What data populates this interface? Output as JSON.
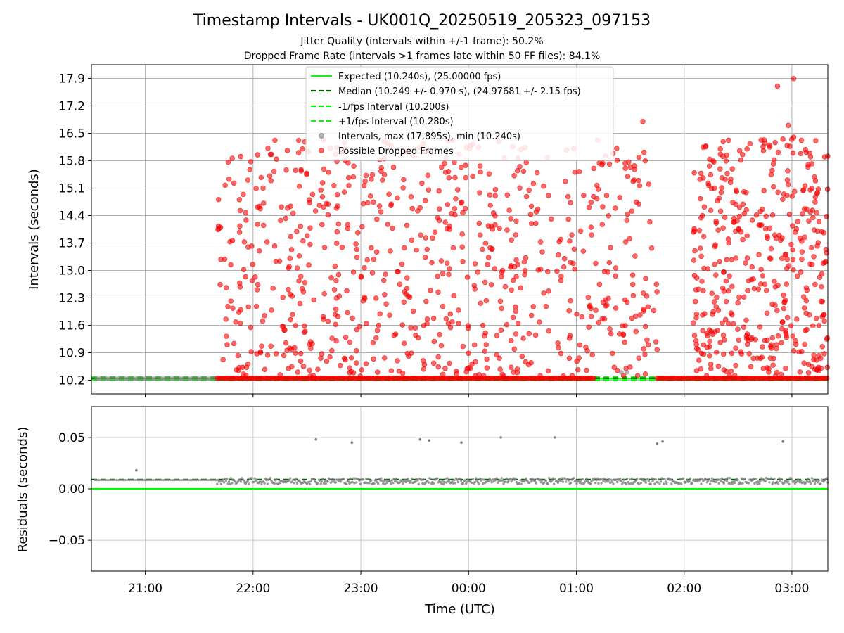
{
  "chart_data": [
    {
      "type": "scatter",
      "title": "Timestamp Intervals - UK001Q_20250519_205323_097153",
      "subtitle_1": "Jitter Quality (intervals within +/-1 frame): 50.2%",
      "subtitle_2": "Dropped Frame Rate (intervals >1 frames late within 50 FF files): 84.1%",
      "ylabel": "Intervals (seconds)",
      "xlabel": "Time (UTC)",
      "ylim": [
        9.85,
        18.25
      ],
      "xlim": [
        "20:30",
        "03:20"
      ],
      "yticks": [
        "10.2",
        "10.9",
        "11.6",
        "12.3",
        "13.0",
        "13.7",
        "14.4",
        "15.1",
        "15.8",
        "16.5",
        "17.2",
        "17.9"
      ],
      "xticks": [
        "21:00",
        "22:00",
        "23:00",
        "00:00",
        "01:00",
        "02:00",
        "03:00"
      ],
      "grid": true,
      "legend_position": "top-center",
      "legend": [
        "Expected (10.240s), (25.00000 fps)",
        "Median (10.249 +/- 0.970 s), (24.97681 +/- 2.15 fps)",
        "-1/fps Interval (10.200s)",
        "+1/fps Interval (10.280s)",
        "Intervals, max (17.895s), min (10.240s)",
        "Possible Dropped Frames"
      ],
      "lines": {
        "expected": 10.24,
        "median": 10.249,
        "minus_1fps": 10.2,
        "plus_1fps": 10.28
      },
      "baseline_segment_range": [
        "20:30",
        "21:40"
      ],
      "dropped_frames_active_ranges": [
        [
          "21:40",
          "01:45"
        ],
        [
          "02:05",
          "03:20"
        ]
      ],
      "dropped_frames_dense_ranges": [
        [
          "21:40",
          "01:10"
        ],
        [
          "01:45",
          "03:20"
        ]
      ],
      "dropped_frames_peaks_y": [
        17.895,
        17.7,
        16.8,
        16.7
      ],
      "colors": {
        "expected": "#00ff00",
        "median": "#006400",
        "interval_band": "#00ff00",
        "intervals": "#808080",
        "dropped": "#ff0000"
      }
    },
    {
      "type": "scatter",
      "ylabel": "Residuals (seconds)",
      "ylim": [
        -0.08,
        0.08
      ],
      "yticks": [
        "0.05",
        "0.00",
        "−0.05"
      ],
      "xticks": [
        "21:00",
        "22:00",
        "23:00",
        "00:00",
        "01:00",
        "02:00",
        "03:00"
      ],
      "grid": true,
      "zero_line": 0.0,
      "median_line": 0.009,
      "residual_band_center": 0.0075,
      "outliers": [
        {
          "x": "20:55",
          "y": 0.018
        },
        {
          "x": "22:35",
          "y": 0.048
        },
        {
          "x": "22:55",
          "y": 0.045
        },
        {
          "x": "23:33",
          "y": 0.048
        },
        {
          "x": "23:38",
          "y": 0.047
        },
        {
          "x": "23:56",
          "y": 0.045
        },
        {
          "x": "00:18",
          "y": 0.05
        },
        {
          "x": "00:48",
          "y": 0.05
        },
        {
          "x": "01:45",
          "y": 0.044
        },
        {
          "x": "01:48",
          "y": 0.046
        },
        {
          "x": "02:55",
          "y": 0.046
        }
      ],
      "colors": {
        "zero_line": "#00ff00",
        "median": "#006400",
        "points": "#808080"
      }
    }
  ]
}
